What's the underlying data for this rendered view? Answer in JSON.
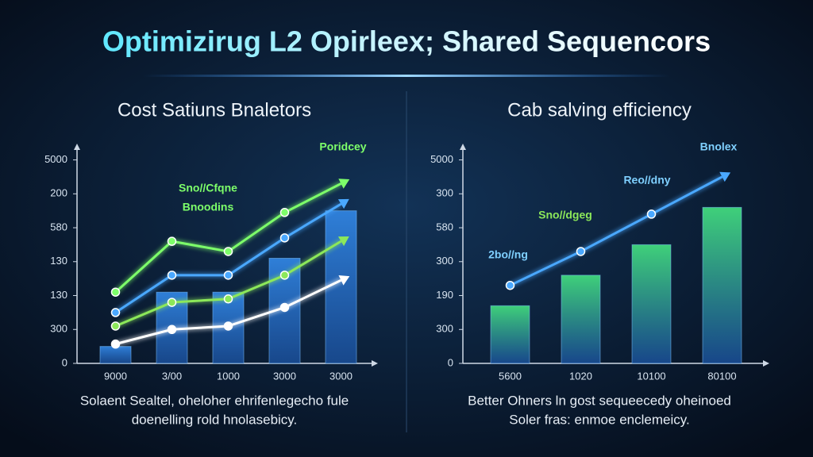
{
  "title": "Optimizirug L2 Opirleex; Shared Sequencors",
  "chart_data": [
    {
      "type": "bar-line",
      "title": "Cost Satiuns Bnaletors",
      "categories": [
        "9000",
        "3/00",
        "1000",
        "3000",
        "3000"
      ],
      "values": [
        0.5,
        2.1,
        2.1,
        3.1,
        4.5
      ],
      "color": "#2f7fd8",
      "series": [
        {
          "color": "#7dff6a",
          "values": [
            2.1,
            3.6,
            3.3,
            4.45,
            5.3
          ]
        },
        {
          "color": "#4aa8ff",
          "values": [
            1.5,
            2.6,
            2.6,
            3.7,
            4.7
          ]
        },
        {
          "color": "#8ce85a",
          "values": [
            1.1,
            1.8,
            1.9,
            2.6,
            3.6
          ]
        },
        {
          "color": "#ffffff",
          "values": [
            0.57,
            1.0,
            1.1,
            1.65,
            2.45
          ]
        }
      ],
      "ylim": [
        0,
        6.2
      ],
      "yticks": [
        {
          "value": 0,
          "label": "0"
        },
        {
          "value": 1,
          "label": "300"
        },
        {
          "value": 2,
          "label": "130"
        },
        {
          "value": 3,
          "label": "130"
        },
        {
          "value": 4,
          "label": "580"
        },
        {
          "value": 5,
          "label": "200"
        },
        {
          "value": 6,
          "label": "5000"
        }
      ],
      "annotations": [
        "Poridcey",
        "Sno//Cfqne",
        "Bnoodins"
      ],
      "caption": [
        "Solaent Sealtel, oheloher ehrifenlegecho fule",
        "doenelling rold hnolasebicy."
      ]
    },
    {
      "type": "bar-line",
      "title": "Cab salving efficiency",
      "categories": [
        "5600",
        "1020",
        "10100",
        "80100"
      ],
      "values": [
        1.7,
        2.6,
        3.5,
        4.6
      ],
      "color": "#3fd07a",
      "series": [
        {
          "color": "#4aa8ff",
          "values": [
            2.3,
            3.3,
            4.4,
            5.5
          ]
        }
      ],
      "ylim": [
        0,
        6.2
      ],
      "yticks": [
        {
          "value": 0,
          "label": "0"
        },
        {
          "value": 1,
          "label": "300"
        },
        {
          "value": 2,
          "label": "190"
        },
        {
          "value": 3,
          "label": "300"
        },
        {
          "value": 4,
          "label": "580"
        },
        {
          "value": 5,
          "label": "300"
        },
        {
          "value": 6,
          "label": "5000"
        }
      ],
      "annotations": [
        "Bnolex",
        "Reo//dny",
        "Sno//dgeg",
        "2bo//ng"
      ],
      "caption": [
        "Better Ohners ln gost sequeecedy oheinoed",
        "Soler fras: enmoe enclemeicy."
      ]
    }
  ]
}
